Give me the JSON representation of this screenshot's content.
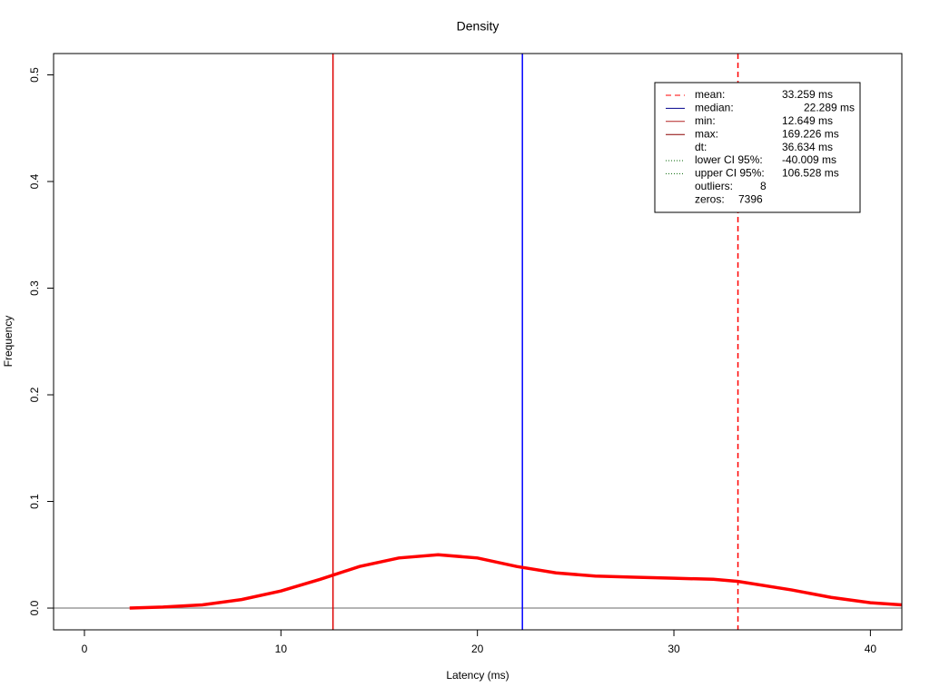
{
  "chart_data": {
    "type": "line",
    "title": "Density",
    "x_label": "Latency (ms)",
    "y_label": "Frequency",
    "x": [
      2.3,
      4,
      6,
      8,
      10,
      12,
      14,
      16,
      18,
      20,
      22,
      24,
      26,
      28,
      30,
      32,
      33.26,
      36,
      38,
      40,
      41.6
    ],
    "series": [
      {
        "color": "#ff0000",
        "values": [
          0.0,
          0.001,
          0.003,
          0.008,
          0.016,
          0.027,
          0.039,
          0.047,
          0.05,
          0.047,
          0.039,
          0.033,
          0.03,
          0.029,
          0.028,
          0.027,
          0.025,
          0.017,
          0.01,
          0.005,
          0.003
        ]
      }
    ],
    "vlines": [
      {
        "value": 33.259,
        "color": "#ff0000",
        "dash": "dashed"
      },
      {
        "value": 22.289,
        "color": "#0000ff",
        "dash": "solid"
      },
      {
        "value": 12.649,
        "color": "#dd0000",
        "dash": "solid"
      }
    ],
    "xlim": [
      -1.57,
      41.6
    ],
    "xticks": [
      0,
      10,
      20,
      30,
      40
    ],
    "ylim": [
      -0.0204,
      0.52
    ],
    "yticks": [
      {
        "value": 0,
        "label": "0.0"
      },
      0.1,
      0.2,
      0.3,
      0.4,
      0.5
    ],
    "legend": [
      {
        "label": "mean:",
        "value": "33.259 ms",
        "color": "#ff0000",
        "dash": "dashed"
      },
      {
        "label": "median:",
        "value": "22.289 ms",
        "color": "#00008b",
        "dash": "solid"
      },
      {
        "label": "min:",
        "value": "12.649 ms",
        "color": "#b22222",
        "dash": "solid"
      },
      {
        "label": "max:",
        "value": "169.226 ms",
        "color": "#8b0000",
        "dash": "solid"
      },
      {
        "label": "dt:",
        "value": "36.634 ms"
      },
      {
        "label": "lower CI 95%:",
        "value": "-40.009 ms",
        "color": "#006400",
        "dash": "dotted"
      },
      {
        "label": "upper CI 95%:",
        "value": "106.528 ms",
        "color": "#006400",
        "dash": "dotted"
      },
      {
        "label": "outliers:",
        "value": "8"
      },
      {
        "label": "zeros:",
        "value": "7396"
      }
    ]
  }
}
